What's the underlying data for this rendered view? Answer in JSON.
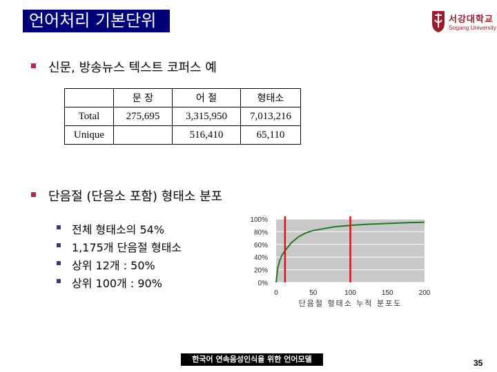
{
  "slide": {
    "title": "언어처리 기본단위",
    "logo": {
      "korean": "서강대학교",
      "english": "Sogang University"
    },
    "heading1": "신문, 방송뉴스 텍스트 코퍼스 예",
    "heading2": "단음절 (단음소 포함) 형태소 분포",
    "table": {
      "headers": [
        "",
        "문 장",
        "어 절",
        "형태소"
      ],
      "rows": [
        {
          "label": "Total",
          "values": [
            "275,695",
            "3,315,950",
            "7,013,216"
          ]
        },
        {
          "label": "Unique",
          "values": [
            "",
            "516,410",
            "65,110"
          ]
        }
      ]
    },
    "bullets": [
      "전체 형태소의 54%",
      "1,175개 단음절 형태소",
      "상위 12개 : 50%",
      "상위 100개 : 90%"
    ],
    "footer": "한국어 연속음성인식을 위한 언어모델",
    "page_number": "35"
  },
  "colors": {
    "title_bg": "#00007a",
    "bullet": "#c8203e",
    "curve": "#1e7a1e",
    "marker": "#e01010"
  },
  "chart_data": {
    "type": "line",
    "xlabel": "단음절 형태소 누적 분포도",
    "ylabel": "",
    "xlim": [
      0,
      200
    ],
    "ylim": [
      0,
      100
    ],
    "x_ticks": [
      0,
      50,
      100,
      150,
      200
    ],
    "y_ticks": [
      "0%",
      "20%",
      "40%",
      "60%",
      "80%",
      "100%"
    ],
    "series": [
      {
        "x": [
          0,
          2,
          5,
          8,
          12,
          20,
          30,
          40,
          50,
          60,
          80,
          100,
          120,
          150,
          180,
          200
        ],
        "y": [
          0,
          22,
          35,
          43,
          50,
          62,
          72,
          78,
          82,
          84,
          88,
          90,
          91.5,
          93,
          94.5,
          95
        ]
      }
    ],
    "markers_x": [
      12,
      100
    ],
    "grid": "horizontal"
  }
}
